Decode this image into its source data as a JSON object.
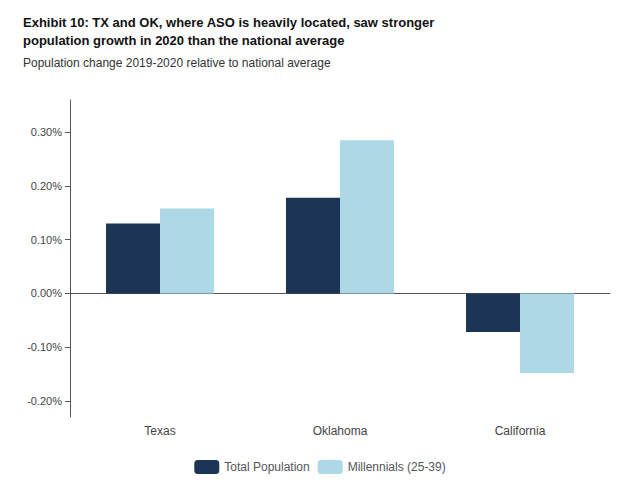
{
  "chart_data": {
    "type": "bar",
    "title": "Exhibit 10: TX and OK, where ASO is heavily located, saw stronger\npopulation growth in 2020 than the national average",
    "subtitle": "Population change 2019-2020 relative to national average",
    "categories": [
      "Texas",
      "Oklahoma",
      "California"
    ],
    "series": [
      {
        "name": "Total Population",
        "color": "#1c3557",
        "values": [
          0.0013,
          0.00178,
          -0.00072
        ]
      },
      {
        "name": "Millennials (25-39)",
        "color": "#add8e6",
        "values": [
          0.00158,
          0.00285,
          -0.00148
        ]
      }
    ],
    "ylim": [
      -0.0023,
      0.0036
    ],
    "yticks": [
      {
        "value": -0.002,
        "label": "-0.20%"
      },
      {
        "value": -0.001,
        "label": "-0.10%"
      },
      {
        "value": 0.0,
        "label": "0.00%"
      },
      {
        "value": 0.001,
        "label": "0.10%"
      },
      {
        "value": 0.002,
        "label": "0.20%"
      },
      {
        "value": 0.003,
        "label": "0.30%"
      }
    ],
    "grid": false,
    "legend": "bottom"
  }
}
